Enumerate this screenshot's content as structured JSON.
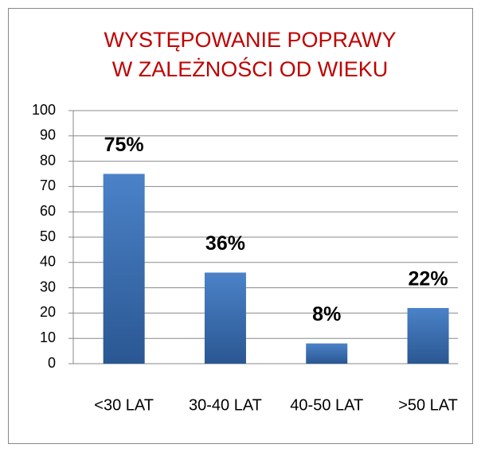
{
  "chart_data": {
    "type": "bar",
    "title": [
      "WYSTĘPOWANIE POPRAWY",
      "W ZALEŻNOŚCI OD WIEKU"
    ],
    "title_color": "#c00000",
    "categories": [
      "<30 LAT",
      "30-40 LAT",
      "40-50 LAT",
      ">50 LAT"
    ],
    "values": [
      75,
      36,
      8,
      22
    ],
    "value_labels": [
      "75%",
      "36%",
      "8%",
      "22%"
    ],
    "color": "#3a6db0",
    "ylim": [
      0,
      100
    ],
    "yticks": [
      0,
      10,
      20,
      30,
      40,
      50,
      60,
      70,
      80,
      90,
      100
    ],
    "grid": true
  }
}
